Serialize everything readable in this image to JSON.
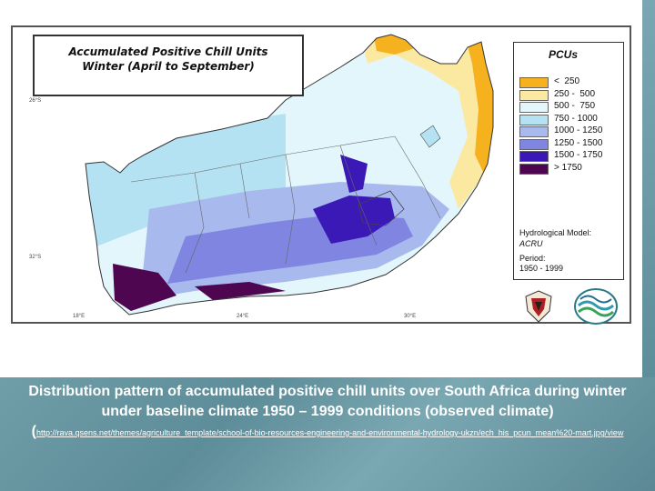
{
  "map": {
    "title_line1": "Accumulated Positive Chill Units",
    "title_line2": "Winter (April to September)",
    "legend": {
      "title": "PCUs",
      "items": [
        {
          "label": "<  250",
          "color": "#f6b11f"
        },
        {
          "label": "250 -  500",
          "color": "#fbe9a2"
        },
        {
          "label": "500 -  750",
          "color": "#e3f6fb"
        },
        {
          "label": "750 - 1000",
          "color": "#b4e2f3"
        },
        {
          "label": "1000 - 1250",
          "color": "#a8b9ee"
        },
        {
          "label": "1250 - 1500",
          "color": "#7f85e0"
        },
        {
          "label": "1500 - 1750",
          "color": "#3b19b6"
        },
        {
          "label": "> 1750",
          "color": "#4f0650"
        }
      ],
      "model_label": "Hydrological Model:",
      "model_name": "ACRU",
      "period_label": "Period:",
      "period_value": "1950 - 1999"
    },
    "coords": {
      "lat_top": "26°S",
      "lat_mid": "32°S",
      "lon_left": "18°E",
      "lon_mid": "24°E",
      "lon_right": "30°E"
    }
  },
  "caption": {
    "main": "Distribution pattern of accumulated positive chill units over South Africa during winter under baseline climate 1950 – 1999 conditions (observed climate) (",
    "url": "http://rava.qsens.net/themes/agriculture_template/school-of-bio-resources-engineering-and-environmental-hydrology-ukzn/ech_his_pcun_mean%20-mart.jpg/view"
  }
}
